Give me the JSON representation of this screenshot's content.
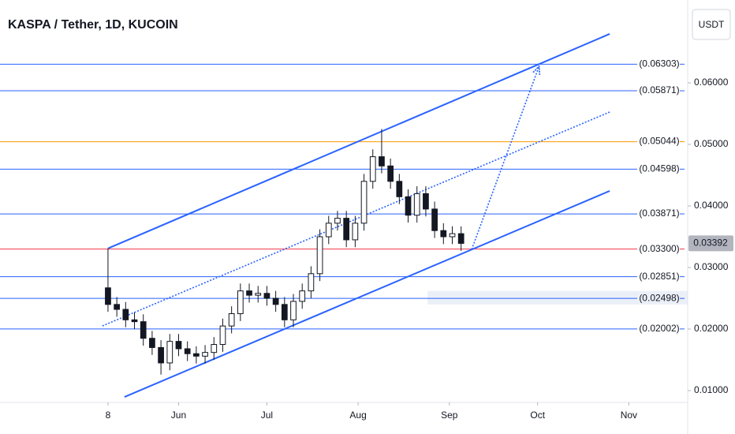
{
  "chart_data": {
    "type": "candlestick",
    "title": "KASPA / Tether, 1D, KUCOIN",
    "currency_button": "USDT",
    "xlim": [
      -36.7,
      197
    ],
    "xticks": [
      {
        "value": 0,
        "label": "8"
      },
      {
        "value": 24,
        "label": "Jun"
      },
      {
        "value": 54,
        "label": "Jul"
      },
      {
        "value": 85,
        "label": "Aug"
      },
      {
        "value": 116,
        "label": "Sep"
      },
      {
        "value": 146,
        "label": "Oct"
      },
      {
        "value": 177,
        "label": "Nov"
      }
    ],
    "ylim": [
      0.00808,
      0.07346
    ],
    "yticks": [
      {
        "value": 0.01,
        "label": "0.01000"
      },
      {
        "value": 0.02,
        "label": "0.02000"
      },
      {
        "value": 0.03,
        "label": "0.03000"
      },
      {
        "value": 0.04,
        "label": "0.04000"
      },
      {
        "value": 0.05,
        "label": "0.05000"
      },
      {
        "value": 0.06,
        "label": "0.06000"
      }
    ],
    "up_color": "#ffffff",
    "down_color": "#131722",
    "x": [
      0,
      3,
      6,
      9,
      12,
      15,
      18,
      21,
      24,
      27,
      30,
      33,
      36,
      39,
      42,
      45,
      48,
      51,
      54,
      57,
      60,
      63,
      66,
      69,
      72,
      75,
      78,
      81,
      84,
      87,
      90,
      93,
      96,
      99,
      102,
      105,
      108,
      111,
      114,
      117,
      120
    ],
    "open": [
      0.0267,
      0.024,
      0.0232,
      0.0215,
      0.0212,
      0.0185,
      0.017,
      0.0145,
      0.018,
      0.0168,
      0.016,
      0.0156,
      0.0162,
      0.0175,
      0.0205,
      0.0225,
      0.0262,
      0.0255,
      0.0258,
      0.025,
      0.024,
      0.0215,
      0.0245,
      0.0262,
      0.029,
      0.035,
      0.0372,
      0.038,
      0.0345,
      0.0372,
      0.044,
      0.048,
      0.0465,
      0.044,
      0.0415,
      0.0385,
      0.042,
      0.0395,
      0.036,
      0.035,
      0.0355
    ],
    "high": [
      0.0331,
      0.0252,
      0.0244,
      0.0227,
      0.0224,
      0.0197,
      0.0182,
      0.0192,
      0.0192,
      0.018,
      0.0172,
      0.0174,
      0.0187,
      0.0217,
      0.0237,
      0.0274,
      0.0274,
      0.027,
      0.027,
      0.0262,
      0.0252,
      0.0257,
      0.0274,
      0.0302,
      0.0362,
      0.0384,
      0.0392,
      0.0392,
      0.0384,
      0.0452,
      0.0492,
      0.0525,
      0.0477,
      0.0452,
      0.0427,
      0.0432,
      0.0432,
      0.0407,
      0.0372,
      0.0367,
      0.0367
    ],
    "low": [
      0.0228,
      0.022,
      0.0203,
      0.02,
      0.0173,
      0.0158,
      0.0126,
      0.0133,
      0.0156,
      0.0148,
      0.0144,
      0.0144,
      0.015,
      0.0163,
      0.0193,
      0.0213,
      0.0243,
      0.0243,
      0.0238,
      0.0228,
      0.0203,
      0.0203,
      0.0233,
      0.025,
      0.0278,
      0.0338,
      0.036,
      0.0333,
      0.0333,
      0.036,
      0.0428,
      0.0453,
      0.0428,
      0.0403,
      0.0373,
      0.0373,
      0.0383,
      0.0348,
      0.0338,
      0.0338,
      0.0327
    ],
    "close": [
      0.024,
      0.0232,
      0.0215,
      0.0212,
      0.0185,
      0.017,
      0.0145,
      0.018,
      0.0168,
      0.016,
      0.0156,
      0.0162,
      0.0175,
      0.0205,
      0.0225,
      0.0262,
      0.0255,
      0.0258,
      0.025,
      0.024,
      0.0215,
      0.0245,
      0.0262,
      0.029,
      0.035,
      0.0372,
      0.038,
      0.0345,
      0.0372,
      0.044,
      0.048,
      0.0465,
      0.044,
      0.0415,
      0.0385,
      0.042,
      0.0395,
      0.036,
      0.035,
      0.0355,
      0.03392
    ],
    "last_price": {
      "value": 0.03392,
      "label": "0.03392"
    },
    "levels": [
      {
        "value": 0.06303,
        "label": "(0.06303)",
        "color": "#2962ff"
      },
      {
        "value": 0.05871,
        "label": "(0.05871)",
        "color": "#2962ff"
      },
      {
        "value": 0.05044,
        "label": "(0.05044)",
        "color": "#ff9800"
      },
      {
        "value": 0.04598,
        "label": "(0.04598)",
        "color": "#2962ff"
      },
      {
        "value": 0.03871,
        "label": "(0.03871)",
        "color": "#2962ff"
      },
      {
        "value": 0.033,
        "label": "(0.03300)",
        "color": "#f23645"
      },
      {
        "value": 0.02851,
        "label": "(0.02851)",
        "color": "#2962ff"
      },
      {
        "value": 0.02498,
        "label": "(0.02498)",
        "color": "#2962ff"
      },
      {
        "value": 0.02002,
        "label": "(0.02002)",
        "color": "#2962ff"
      }
    ],
    "drawings": [
      {
        "kind": "solid",
        "x": [
          0,
          170.5
        ],
        "y": [
          0.0331,
          0.06795
        ]
      },
      {
        "kind": "solid",
        "x": [
          5.6,
          170.5
        ],
        "y": [
          0.00897,
          0.04244
        ]
      },
      {
        "kind": "dotted",
        "x": [
          -1.9,
          170.5
        ],
        "y": [
          0.02051,
          0.05526
        ]
      },
      {
        "kind": "arrow",
        "x": [
          123.6,
          146.4
        ],
        "y": [
          0.03295,
          0.06256
        ]
      }
    ],
    "zone": {
      "x": [
        108.6,
        197
      ],
      "y": [
        0.024,
        0.0262
      ]
    }
  }
}
